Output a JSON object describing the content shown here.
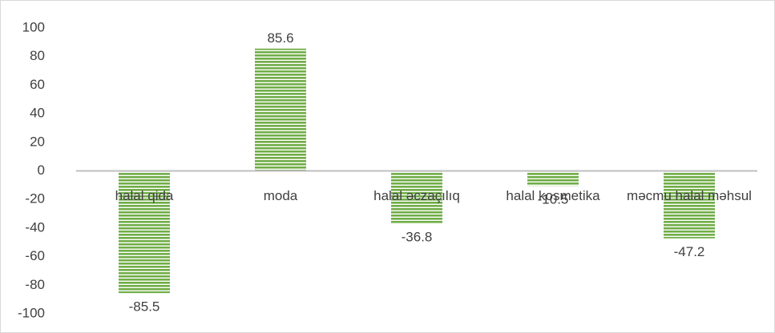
{
  "chart_data": {
    "type": "bar",
    "categories": [
      "halal qida",
      "moda",
      "halal əczaçılıq",
      "halal kosmetika",
      "məcmu halal məhsul"
    ],
    "values": [
      -85.5,
      85.6,
      -36.8,
      -10.5,
      -47.2
    ],
    "color": "#70ad47",
    "ylim": [
      -100,
      100
    ],
    "yticks": [
      -100,
      -80,
      -60,
      -40,
      -20,
      0,
      20,
      40,
      60,
      80,
      100
    ],
    "grid": false
  }
}
